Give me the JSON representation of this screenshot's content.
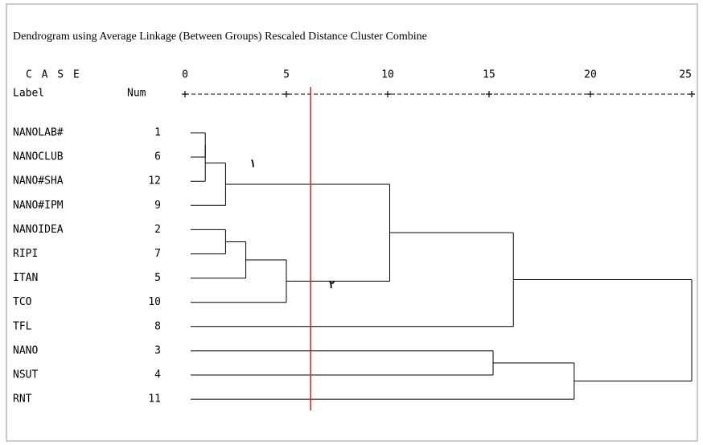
{
  "chart_data": {
    "type": "dendrogram",
    "title": "Dendrogram using Average Linkage (Between Groups) Rescaled Distance Cluster Combine",
    "case_header": "C A S E",
    "label_header": "Label",
    "num_header": "Num",
    "xlim": [
      0,
      25
    ],
    "xticks": [
      0,
      5,
      10,
      15,
      20,
      25
    ],
    "leaves": [
      {
        "label": "NANOLAB#",
        "num": 1
      },
      {
        "label": "NANOCLUB",
        "num": 6
      },
      {
        "label": "NANO#SHA",
        "num": 12
      },
      {
        "label": "NANO#IPM",
        "num": 9
      },
      {
        "label": "NANOIDEA",
        "num": 2
      },
      {
        "label": "RIPI",
        "num": 7
      },
      {
        "label": "ITAN",
        "num": 5
      },
      {
        "label": "TCO",
        "num": 10
      },
      {
        "label": "TFL",
        "num": 8
      },
      {
        "label": "NANO",
        "num": 3
      },
      {
        "label": "NSUT",
        "num": 4
      },
      {
        "label": "RNT",
        "num": 11
      }
    ],
    "merges": [
      {
        "a": 0,
        "b": 1,
        "height": 1.0
      },
      {
        "a": 12,
        "b": 2,
        "height": 1.0
      },
      {
        "a": 13,
        "b": 3,
        "height": 2.0
      },
      {
        "a": 4,
        "b": 5,
        "height": 2.0
      },
      {
        "a": 15,
        "b": 6,
        "height": 3.0
      },
      {
        "a": 16,
        "b": 7,
        "height": 5.0
      },
      {
        "a": 14,
        "b": 17,
        "height": 10.1
      },
      {
        "a": 18,
        "b": 8,
        "height": 16.2
      },
      {
        "a": 9,
        "b": 10,
        "height": 15.2
      },
      {
        "a": 20,
        "b": 11,
        "height": 19.2
      },
      {
        "a": 19,
        "b": 21,
        "height": 25.0
      }
    ],
    "cut_line": {
      "value": 6.2,
      "color": "#e02020"
    },
    "annotations": [
      {
        "text": "۱",
        "x": 3.2,
        "row": 1.3
      },
      {
        "text": "۲",
        "x": 7.1,
        "row": 6.3
      }
    ]
  }
}
